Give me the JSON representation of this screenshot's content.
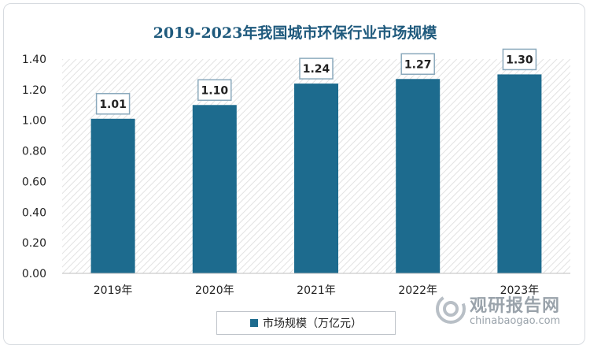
{
  "colors": {
    "bar": "#1d6b8e",
    "title": "#1f5a7d",
    "label_border": "#8aa9bc"
  },
  "legend": {
    "label": "市场规模（万亿元）"
  },
  "watermark": {
    "cn": "观研报告网",
    "en": "chinabaogao.com"
  },
  "chart_data": {
    "type": "bar",
    "title": "2019-2023年我国城市环保行业市场规模",
    "categories": [
      "2019年",
      "2020年",
      "2021年",
      "2022年",
      "2023年"
    ],
    "series": [
      {
        "name": "市场规模（万亿元）",
        "values": [
          1.01,
          1.1,
          1.24,
          1.27,
          1.3
        ]
      }
    ],
    "data_labels": [
      "1.01",
      "1.10",
      "1.24",
      "1.27",
      "1.30"
    ],
    "ylim": [
      0,
      1.4
    ],
    "yticks": [
      "0.00",
      "0.20",
      "0.40",
      "0.60",
      "0.80",
      "1.00",
      "1.20",
      "1.40"
    ],
    "xlabel": "",
    "ylabel": "",
    "legend_position": "bottom",
    "background": "diagonal-hatch"
  }
}
